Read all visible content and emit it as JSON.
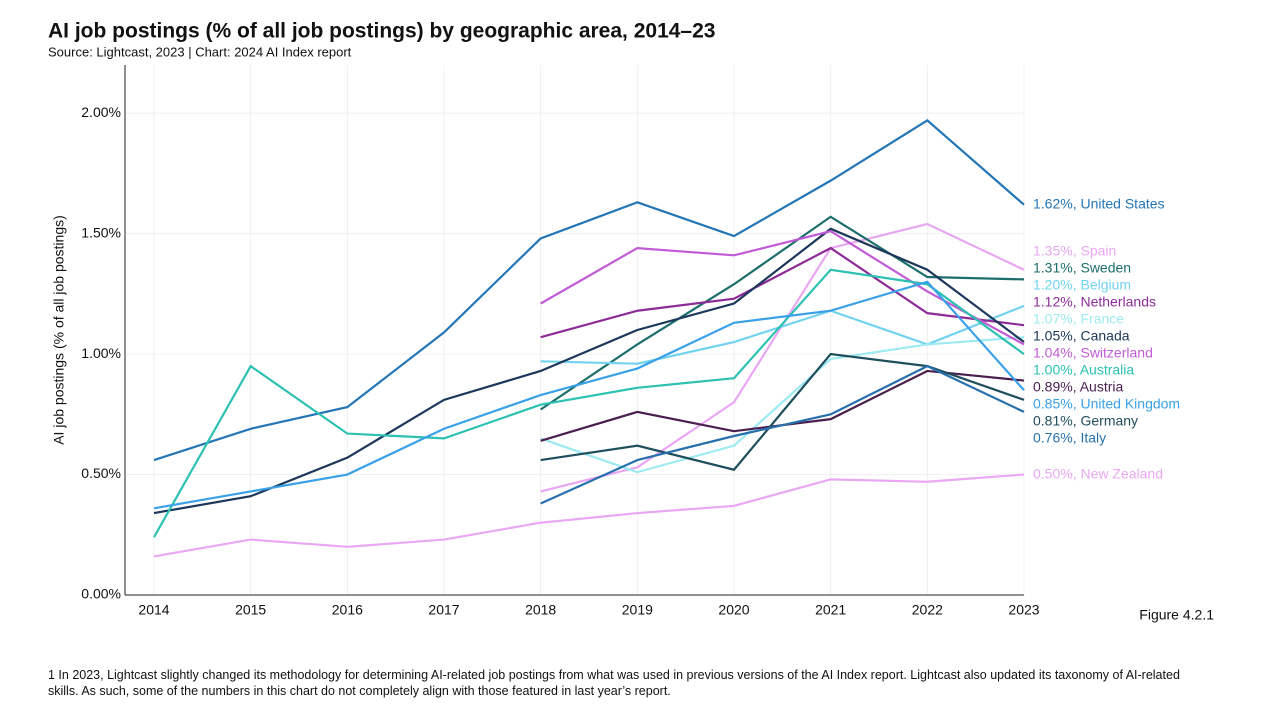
{
  "chart_data": {
    "type": "line",
    "title": "AI job postings (% of all job postings) by geographic area, 2014–23",
    "subtitle": "Source: Lightcast, 2023 | Chart: 2024 AI Index report",
    "y_label": "AI job postings (% of all job postings)",
    "figure_label": "Figure 4.2.1",
    "footnote": "1 In 2023, Lightcast slightly changed its methodology for determining AI-related job postings from what was used in previous versions of the AI Index report. Lightcast also updated its taxonomy of AI-related skills. As such, some of the numbers in this chart do not completely align with those featured in last year’s report.",
    "x": [
      2014,
      2015,
      2016,
      2017,
      2018,
      2019,
      2020,
      2021,
      2022,
      2023
    ],
    "xlim": [
      2013.7,
      2023
    ],
    "xticks": [
      2014,
      2015,
      2016,
      2017,
      2018,
      2019,
      2020,
      2021,
      2022,
      2023
    ],
    "ylim": [
      0,
      2.2
    ],
    "yticks": [
      {
        "value": 0,
        "label": "0.00%"
      },
      {
        "value": 0.5,
        "label": "0.50%"
      },
      {
        "value": 1,
        "label": "1.00%"
      },
      {
        "value": 1.5,
        "label": "1.50%"
      },
      {
        "value": 2,
        "label": "2.00%"
      }
    ],
    "grid": true,
    "series": [
      {
        "name": "United States",
        "color": "#2476b6",
        "values": [
          0.56,
          0.69,
          0.78,
          1.09,
          1.48,
          1.63,
          1.49,
          1.72,
          1.97,
          1.62
        ],
        "value_labels": [
          null,
          null,
          null,
          null,
          null,
          null,
          null,
          null,
          null,
          "1.62%,"
        ]
      },
      {
        "name": "Spain",
        "color": "#e9a6f3",
        "values": [
          null,
          null,
          null,
          null,
          0.43,
          0.53,
          0.8,
          1.44,
          1.54,
          1.35
        ],
        "value_labels": [
          null,
          null,
          null,
          null,
          null,
          null,
          null,
          null,
          null,
          "1.35%,"
        ]
      },
      {
        "name": "Sweden",
        "color": "#1b6e6c",
        "values": [
          null,
          null,
          null,
          null,
          0.77,
          1.04,
          1.29,
          1.57,
          1.32,
          1.31
        ],
        "value_labels": [
          null,
          null,
          null,
          null,
          null,
          null,
          null,
          null,
          null,
          "1.31%,"
        ]
      },
      {
        "name": "Belgium",
        "color": "#72d3f0",
        "values": [
          null,
          null,
          null,
          null,
          0.97,
          0.96,
          1.05,
          1.18,
          1.04,
          1.2
        ],
        "value_labels": [
          null,
          null,
          null,
          null,
          null,
          null,
          null,
          null,
          null,
          "1.20%,"
        ]
      },
      {
        "name": "Netherlands",
        "color": "#8d2c97",
        "values": [
          null,
          null,
          null,
          null,
          1.07,
          1.18,
          1.23,
          1.44,
          1.17,
          1.12
        ],
        "value_labels": [
          null,
          null,
          null,
          null,
          null,
          null,
          null,
          null,
          null,
          "1.12%,"
        ]
      },
      {
        "name": "France",
        "color": "#9eeaf2",
        "values": [
          null,
          null,
          null,
          null,
          0.65,
          0.51,
          0.62,
          0.98,
          1.04,
          1.07
        ],
        "value_labels": [
          null,
          null,
          null,
          null,
          null,
          null,
          null,
          null,
          null,
          "1.07%,"
        ]
      },
      {
        "name": "Canada",
        "color": "#1c375a",
        "values": [
          0.34,
          0.41,
          0.57,
          0.81,
          0.93,
          1.1,
          1.21,
          1.52,
          1.35,
          1.05
        ],
        "value_labels": [
          null,
          null,
          null,
          null,
          null,
          null,
          null,
          null,
          null,
          "1.05%,"
        ]
      },
      {
        "name": "Switzerland",
        "color": "#c25bd6",
        "values": [
          null,
          null,
          null,
          null,
          1.21,
          1.44,
          1.41,
          1.51,
          1.26,
          1.04
        ],
        "value_labels": [
          null,
          null,
          null,
          null,
          null,
          null,
          null,
          null,
          null,
          "1.04%,"
        ]
      },
      {
        "name": "Australia",
        "color": "#2cc1b2",
        "values": [
          0.24,
          0.95,
          0.67,
          0.65,
          0.79,
          0.86,
          0.9,
          1.35,
          1.29,
          1.0
        ],
        "value_labels": [
          null,
          null,
          null,
          null,
          null,
          null,
          null,
          null,
          null,
          "1.00%,"
        ]
      },
      {
        "name": "Austria",
        "color": "#4a1f50",
        "values": [
          null,
          null,
          null,
          null,
          0.64,
          0.76,
          0.68,
          0.73,
          0.93,
          0.89
        ],
        "value_labels": [
          null,
          null,
          null,
          null,
          null,
          null,
          null,
          null,
          null,
          "0.89%,"
        ]
      },
      {
        "name": "United Kingdom",
        "color": "#3aa1e8",
        "values": [
          0.36,
          0.43,
          0.5,
          0.69,
          0.83,
          0.94,
          1.13,
          1.18,
          1.3,
          0.85
        ],
        "value_labels": [
          null,
          null,
          null,
          null,
          null,
          null,
          null,
          null,
          null,
          "0.85%,"
        ]
      },
      {
        "name": "Germany",
        "color": "#1f4e5c",
        "values": [
          null,
          null,
          null,
          null,
          0.56,
          0.62,
          0.52,
          1.0,
          0.95,
          0.81
        ],
        "value_labels": [
          null,
          null,
          null,
          null,
          null,
          null,
          null,
          null,
          null,
          "0.81%,"
        ]
      },
      {
        "name": "Italy",
        "color": "#2870ad",
        "values": [
          null,
          null,
          null,
          null,
          0.38,
          0.56,
          0.66,
          0.75,
          0.95,
          0.76
        ],
        "value_labels": [
          null,
          null,
          null,
          null,
          null,
          null,
          null,
          null,
          null,
          "0.76%,"
        ]
      },
      {
        "name": "New Zealand",
        "color": "#eaa8f4",
        "values": [
          0.16,
          0.23,
          0.2,
          0.23,
          0.3,
          0.34,
          0.37,
          0.48,
          0.47,
          0.5
        ],
        "value_labels": [
          null,
          null,
          null,
          null,
          null,
          null,
          null,
          null,
          null,
          "0.50%,"
        ]
      }
    ]
  }
}
